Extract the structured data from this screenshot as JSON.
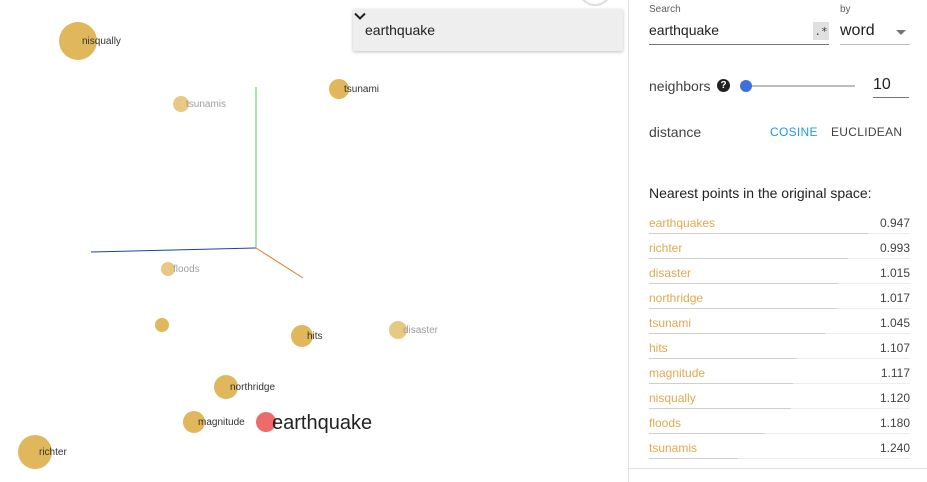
{
  "projection": {
    "label_by": "earthquake",
    "points": [
      {
        "label": "nisqually",
        "faded": false,
        "selected": false
      },
      {
        "label": "tsunamis",
        "faded": true,
        "selected": false
      },
      {
        "label": "tsunami",
        "faded": false,
        "selected": false
      },
      {
        "label": "floods",
        "faded": true,
        "selected": false
      },
      {
        "label": "",
        "faded": false,
        "selected": false
      },
      {
        "label": "hits",
        "faded": false,
        "selected": false
      },
      {
        "label": "disaster",
        "faded": true,
        "selected": false
      },
      {
        "label": "northridge",
        "faded": false,
        "selected": false
      },
      {
        "label": "magnitude",
        "faded": false,
        "selected": false
      },
      {
        "label": "earthquake",
        "faded": false,
        "selected": true
      },
      {
        "label": "richter",
        "faded": false,
        "selected": false
      }
    ],
    "colors": {
      "point": "#e0b75a",
      "selected_point": "#ee6b6b",
      "axis_x": "#1f3fae",
      "axis_y": "#5fc35f",
      "axis_z": "#d47a2a"
    }
  },
  "inspector": {
    "search_caption": "Search",
    "search_value": "earthquake",
    "regex_label": ".*",
    "by_caption": "by",
    "by_value": "word",
    "neighbors_label": "neighbors",
    "help_glyph": "?",
    "neighbors_value": "10",
    "neighbors_fraction": 0.0,
    "distance_label": "distance",
    "cosine_label": "COSINE",
    "euclidean_label": "EUCLIDEAN",
    "nearest_title": "Nearest points in the original space:",
    "neighbors": [
      {
        "word": "earthquakes",
        "distance": "0.947"
      },
      {
        "word": "richter",
        "distance": "0.993"
      },
      {
        "word": "disaster",
        "distance": "1.015"
      },
      {
        "word": "northridge",
        "distance": "1.017"
      },
      {
        "word": "tsunami",
        "distance": "1.045"
      },
      {
        "word": "hits",
        "distance": "1.107"
      },
      {
        "word": "magnitude",
        "distance": "1.117"
      },
      {
        "word": "nisqually",
        "distance": "1.120"
      },
      {
        "word": "floods",
        "distance": "1.180"
      },
      {
        "word": "tsunamis",
        "distance": "1.240"
      }
    ]
  }
}
